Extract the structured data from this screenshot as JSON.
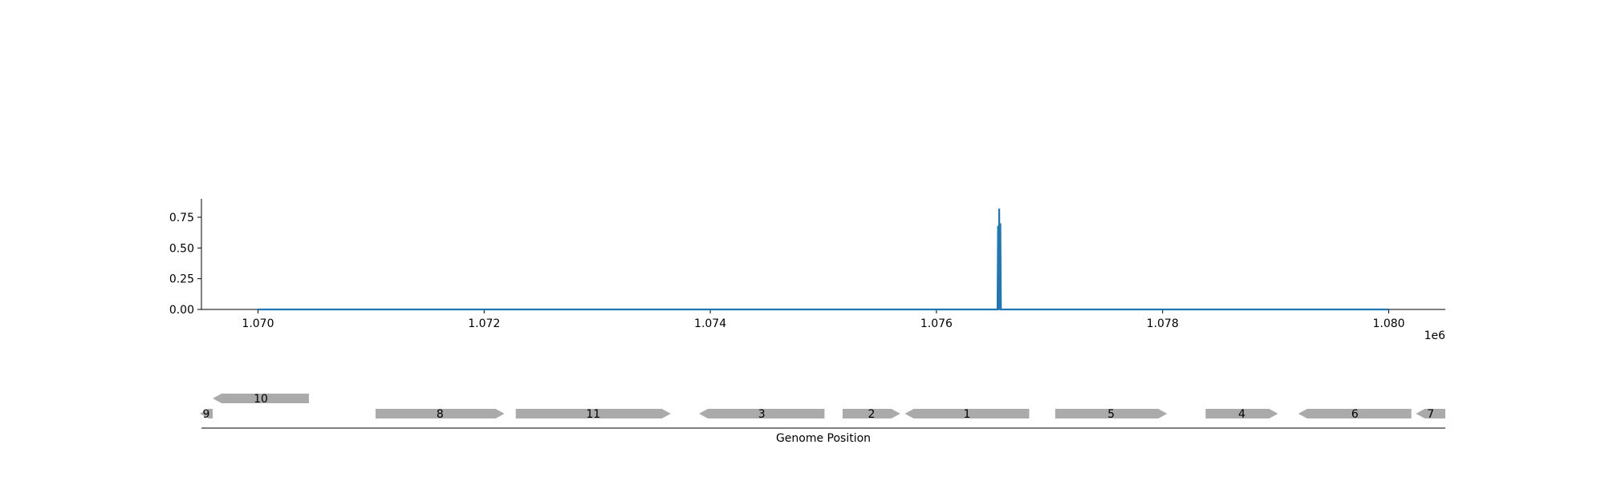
{
  "chart_data": [
    {
      "type": "line",
      "title": "",
      "xlabel": "",
      "ylabel": "",
      "x_offset_label": "1e6",
      "xlim": [
        1.0695,
        1.0805
      ],
      "ylim": [
        0,
        0.9
      ],
      "x_ticks": [
        1.07,
        1.072,
        1.074,
        1.076,
        1.078,
        1.08
      ],
      "x_tick_labels": [
        "1.070",
        "1.072",
        "1.074",
        "1.076",
        "1.078",
        "1.080"
      ],
      "y_ticks": [
        0.0,
        0.25,
        0.5,
        0.75
      ],
      "y_tick_labels": [
        "0.00",
        "0.25",
        "0.50",
        "0.75"
      ],
      "grid": false,
      "series": [
        {
          "color": "#1f77b4",
          "x": [
            1.07,
            1.07654,
            1.076545,
            1.07655,
            1.076555,
            1.07656,
            1.076565,
            1.07657,
            1.08
          ],
          "y": [
            0.0,
            0.0,
            0.68,
            0.0,
            0.82,
            0.0,
            0.7,
            0.0,
            0.0
          ]
        }
      ]
    },
    {
      "type": "gene_map",
      "xlabel": "Genome Position",
      "genes": [
        {
          "label": "9",
          "start": 1.0694,
          "end": 1.0696,
          "strand": -1,
          "row": 0
        },
        {
          "label": "10",
          "start": 1.0696,
          "end": 1.07045,
          "strand": -1,
          "row": 1
        },
        {
          "label": "8",
          "start": 1.07104,
          "end": 1.07218,
          "strand": 1,
          "row": 0
        },
        {
          "label": "11",
          "start": 1.07228,
          "end": 1.07365,
          "strand": 1,
          "row": 0
        },
        {
          "label": "3",
          "start": 1.0739,
          "end": 1.07501,
          "strand": -1,
          "row": 0
        },
        {
          "label": "2",
          "start": 1.07517,
          "end": 1.07568,
          "strand": 1,
          "row": 0
        },
        {
          "label": "1",
          "start": 1.07572,
          "end": 1.07682,
          "strand": -1,
          "row": 0
        },
        {
          "label": "5",
          "start": 1.07705,
          "end": 1.07804,
          "strand": 1,
          "row": 0
        },
        {
          "label": "4",
          "start": 1.07838,
          "end": 1.07902,
          "strand": 1,
          "row": 0
        },
        {
          "label": "6",
          "start": 1.0792,
          "end": 1.0802,
          "strand": -1,
          "row": 0
        },
        {
          "label": "7",
          "start": 1.08024,
          "end": 1.0805,
          "strand": -1,
          "row": 0
        }
      ],
      "gene_color": "#aaaaaa"
    }
  ]
}
